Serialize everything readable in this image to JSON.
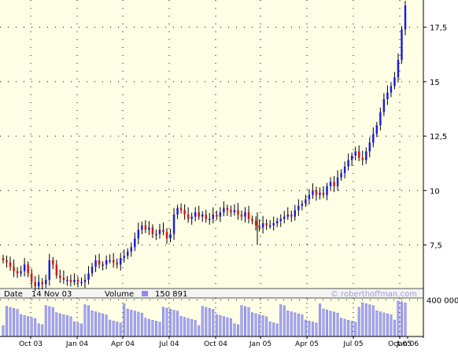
{
  "colors": {
    "background": "#ffffe6",
    "grid": "#000000",
    "up": "#1c1ce6",
    "down": "#e01010",
    "wick": "#000000",
    "volume": "#a8a8f4",
    "volume_edge": "#6d6de0",
    "info_bar": "#f4f4f4",
    "watermark": "#9a9ad8",
    "text": "#000000"
  },
  "info_bar": {
    "date_label": "Date",
    "date_value": "14 Nov 03",
    "volume_label": "Volume",
    "volume_value": "150 891",
    "watermark": "© roberthoffman.com"
  },
  "chart_data": {
    "type": "candlestick",
    "title": "",
    "x_tick_labels": [
      "Oct 03",
      "Jan 04",
      "Apr 04",
      "Jul 04",
      "Oct 04",
      "Jan 05",
      "Apr 05",
      "Jul 05",
      "Oct 05",
      "Jan 06"
    ],
    "price_axis": {
      "ylim": [
        5.5,
        18.75
      ],
      "tick_labels": [
        "7,5",
        "10",
        "12,5",
        "15",
        "17,5"
      ],
      "tick_values": [
        7.5,
        10,
        12.5,
        15,
        17.5
      ],
      "position": "right",
      "grid": true
    },
    "volume_axis": {
      "ylim": [
        0,
        420000
      ],
      "tick_labels": [
        "400 000"
      ],
      "tick_values": [
        400000
      ],
      "position": "right"
    },
    "weekly_closes": [
      6.8,
      6.7,
      6.5,
      6.3,
      6.2,
      6.3,
      6.6,
      6.2,
      5.8,
      5.6,
      5.8,
      5.7,
      5.9,
      6.8,
      6.6,
      6.1,
      6.0,
      5.9,
      5.9,
      5.8,
      5.9,
      5.8,
      5.8,
      5.9,
      6.2,
      6.5,
      6.8,
      6.6,
      6.6,
      6.8,
      6.8,
      6.7,
      6.6,
      6.9,
      7.0,
      7.2,
      7.4,
      7.8,
      8.2,
      8.4,
      8.2,
      8.3,
      8.0,
      8.0,
      8.2,
      8.1,
      7.8,
      8.0,
      8.9,
      9.2,
      9.1,
      8.9,
      8.7,
      8.8,
      9.0,
      8.8,
      8.9,
      8.7,
      8.7,
      8.9,
      8.8,
      9.0,
      9.2,
      9.1,
      9.0,
      9.1,
      8.9,
      8.8,
      9.0,
      8.7,
      8.6,
      8.4,
      8.3,
      8.5,
      8.4,
      8.4,
      8.5,
      8.6,
      8.7,
      8.8,
      8.9,
      8.8,
      9.1,
      9.3,
      9.4,
      9.6,
      9.8,
      10.0,
      9.8,
      9.9,
      9.8,
      10.2,
      10.4,
      10.2,
      10.6,
      10.8,
      11.1,
      11.4,
      11.6,
      11.8,
      11.5,
      11.4,
      11.8,
      12.2,
      12.6,
      13.0,
      13.6,
      14.2,
      14.5,
      14.8,
      15.2,
      16.0,
      17.4,
      18.5
    ],
    "date_range": [
      "2003-08",
      "2006-01"
    ],
    "volume_note": "weekly volume bars, typical range 100 000 – 400 000"
  }
}
